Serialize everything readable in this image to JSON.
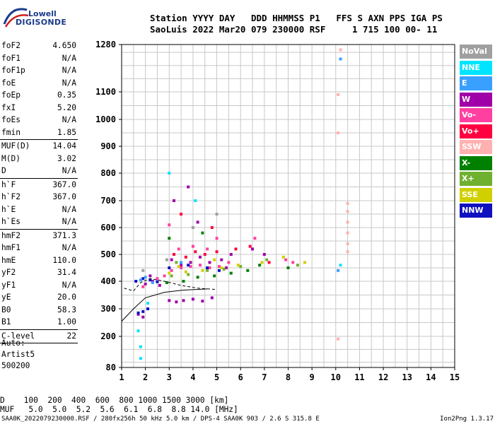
{
  "logo": {
    "line1": "Lowell",
    "line2": "DIGISONDE"
  },
  "header": {
    "labels": "Station YYYY DAY   DDD HHMMSS P1   FFS S AXN PPS IGA PS",
    "values": "SaoLuis 2022 Mar20 079 230000 RSF     1 715 100 00- 11"
  },
  "params": [
    {
      "name": "foF2",
      "value": "4.650"
    },
    {
      "name": "foF1",
      "value": "N/A"
    },
    {
      "name": "foF1p",
      "value": "N/A"
    },
    {
      "name": "foE",
      "value": "N/A"
    },
    {
      "name": "foEp",
      "value": "0.35"
    },
    {
      "name": "fxI",
      "value": "5.20"
    },
    {
      "name": "foEs",
      "value": "N/A"
    },
    {
      "name": "fmin",
      "value": "1.85",
      "sep_after": true
    },
    {
      "name": "MUF(D)",
      "value": "14.04"
    },
    {
      "name": "M(D)",
      "value": "3.02"
    },
    {
      "name": "D",
      "value": "N/A",
      "sep_after": true
    },
    {
      "name": "h`F",
      "value": "367.0"
    },
    {
      "name": "h`F2",
      "value": "367.0"
    },
    {
      "name": "h`E",
      "value": "N/A"
    },
    {
      "name": "h`Es",
      "value": "N/A",
      "sep_after": true
    },
    {
      "name": "hmF2",
      "value": "371.3"
    },
    {
      "name": "hmF1",
      "value": "N/A"
    },
    {
      "name": "hmE",
      "value": "110.0"
    },
    {
      "name": "yF2",
      "value": "31.4"
    },
    {
      "name": "yF1",
      "value": "N/A"
    },
    {
      "name": "yE",
      "value": "20.0"
    },
    {
      "name": "B0",
      "value": "58.3"
    },
    {
      "name": "B1",
      "value": "1.00",
      "sep_after": true
    },
    {
      "name": "C-level",
      "value": "22",
      "sep_after": true
    }
  ],
  "auto": {
    "line1": "Auto:",
    "line2": "Artist5",
    "line3": "500200"
  },
  "legend": [
    {
      "label": "NoVal",
      "color": "#a0a0a0"
    },
    {
      "label": "NNE",
      "color": "#00e5ff"
    },
    {
      "label": "E",
      "color": "#3aa0ff"
    },
    {
      "label": "W",
      "color": "#a000a8"
    },
    {
      "label": "Vo-",
      "color": "#ff40a0"
    },
    {
      "label": "Vo+",
      "color": "#ff0040"
    },
    {
      "label": "SSW",
      "color": "#ffb0b0"
    },
    {
      "label": "X-",
      "color": "#008000"
    },
    {
      "label": "X+",
      "color": "#70b030"
    },
    {
      "label": "SSE",
      "color": "#d0d000"
    },
    {
      "label": "NNW",
      "color": "#1010c0"
    }
  ],
  "footer": {
    "d_row": "D    100  200  400  600  800 1000 1500 3000 [km]",
    "muf_row": "MUF   5.0  5.0  5.2  5.6  6.1  6.8  8.8 14.0 [MHz]",
    "file_line": "SAA0K_2022079230000.RSF / 280fx256h 50 kHz 5.0 km / DPS-4 SAA0K 903 / 2.6 S 315.8 E",
    "version": "Ion2Png 1.3.17"
  },
  "chart_data": {
    "type": "scatter",
    "xlim": [
      1,
      15
    ],
    "ylim": [
      80,
      1280
    ],
    "x_ticks": [
      1,
      2,
      3,
      4,
      5,
      6,
      7,
      8,
      9,
      10,
      11,
      12,
      13,
      14,
      15
    ],
    "y_ticks": [
      80,
      200,
      300,
      400,
      500,
      600,
      700,
      800,
      900,
      1000,
      1100,
      1280
    ],
    "grid": true,
    "legend_position": "right",
    "series": [
      {
        "name": "W",
        "color": "#a000a8",
        "points": [
          [
            2.0,
            390
          ],
          [
            2.3,
            400
          ],
          [
            2.6,
            385
          ],
          [
            3.0,
            330
          ],
          [
            3.3,
            325
          ],
          [
            3.6,
            330
          ],
          [
            4.0,
            335
          ],
          [
            4.4,
            328
          ],
          [
            4.8,
            340
          ],
          [
            3.1,
            480
          ],
          [
            3.5,
            460
          ],
          [
            3.9,
            470
          ],
          [
            4.3,
            490
          ],
          [
            4.7,
            470
          ],
          [
            5.2,
            480
          ],
          [
            5.6,
            500
          ],
          [
            6.5,
            520
          ],
          [
            7.0,
            500
          ],
          [
            1.7,
            280
          ],
          [
            1.9,
            270
          ],
          [
            2.2,
            420
          ],
          [
            3.2,
            700
          ],
          [
            3.8,
            750
          ],
          [
            4.2,
            620
          ],
          [
            5.4,
            450
          ]
        ]
      },
      {
        "name": "Vo-",
        "color": "#ff40a0",
        "points": [
          [
            2.5,
            410
          ],
          [
            2.8,
            420
          ],
          [
            3.1,
            440
          ],
          [
            3.5,
            450
          ],
          [
            3.9,
            455
          ],
          [
            4.3,
            460
          ],
          [
            4.7,
            450
          ],
          [
            5.1,
            455
          ],
          [
            5.5,
            470
          ],
          [
            3.4,
            520
          ],
          [
            4.0,
            530
          ],
          [
            4.6,
            520
          ],
          [
            6.6,
            560
          ],
          [
            7.9,
            480
          ],
          [
            8.2,
            470
          ],
          [
            1.9,
            380
          ],
          [
            3.0,
            610
          ],
          [
            5.0,
            560
          ]
        ]
      },
      {
        "name": "Vo+",
        "color": "#ff0040",
        "points": [
          [
            3.2,
            500
          ],
          [
            3.7,
            490
          ],
          [
            4.1,
            510
          ],
          [
            4.5,
            500
          ],
          [
            5.0,
            510
          ],
          [
            5.8,
            520
          ],
          [
            6.4,
            530
          ],
          [
            7.2,
            470
          ],
          [
            4.8,
            600
          ],
          [
            3.5,
            650
          ]
        ]
      },
      {
        "name": "X-",
        "color": "#008000",
        "points": [
          [
            2.9,
            395
          ],
          [
            3.6,
            400
          ],
          [
            4.2,
            415
          ],
          [
            4.9,
            420
          ],
          [
            5.6,
            430
          ],
          [
            6.3,
            440
          ],
          [
            6.8,
            460
          ],
          [
            8.0,
            450
          ],
          [
            3.0,
            560
          ],
          [
            4.4,
            580
          ]
        ]
      },
      {
        "name": "X+",
        "color": "#70b030",
        "points": [
          [
            3.1,
            420
          ],
          [
            3.8,
            425
          ],
          [
            4.6,
            440
          ],
          [
            5.3,
            445
          ],
          [
            6.0,
            455
          ],
          [
            7.1,
            480
          ],
          [
            8.4,
            460
          ],
          [
            3.3,
            470
          ]
        ]
      },
      {
        "name": "SSE",
        "color": "#d0d000",
        "points": [
          [
            3.0,
            430
          ],
          [
            3.7,
            435
          ],
          [
            4.4,
            440
          ],
          [
            5.2,
            450
          ],
          [
            5.9,
            460
          ],
          [
            6.9,
            470
          ],
          [
            7.8,
            490
          ],
          [
            8.7,
            470
          ],
          [
            4.9,
            480
          ],
          [
            3.4,
            455
          ]
        ]
      },
      {
        "name": "NNW",
        "color": "#1010c0",
        "points": [
          [
            1.6,
            400
          ],
          [
            1.9,
            410
          ],
          [
            2.2,
            405
          ],
          [
            2.5,
            398
          ],
          [
            1.7,
            285
          ],
          [
            1.9,
            290
          ],
          [
            2.1,
            300
          ],
          [
            3.0,
            450
          ],
          [
            3.8,
            460
          ],
          [
            4.6,
            450
          ],
          [
            5.1,
            440
          ]
        ]
      },
      {
        "name": "NNE",
        "color": "#00e5ff",
        "points": [
          [
            1.7,
            220
          ],
          [
            1.8,
            160
          ],
          [
            1.8,
            115
          ],
          [
            2.1,
            320
          ],
          [
            10.2,
            460
          ],
          [
            3.0,
            800
          ],
          [
            4.1,
            700
          ]
        ]
      },
      {
        "name": "E",
        "color": "#3aa0ff",
        "points": [
          [
            1.8,
            405
          ],
          [
            2.0,
            415
          ],
          [
            2.3,
            395
          ],
          [
            10.2,
            1225
          ],
          [
            10.1,
            440
          ],
          [
            3.5,
            470
          ]
        ]
      },
      {
        "name": "SSW",
        "color": "#ffb0b0",
        "points": [
          [
            10.1,
            950
          ],
          [
            10.1,
            190
          ],
          [
            10.5,
            690
          ],
          [
            10.5,
            660
          ],
          [
            10.5,
            620
          ],
          [
            10.5,
            580
          ],
          [
            10.5,
            540
          ],
          [
            10.5,
            510
          ],
          [
            10.2,
            1260
          ],
          [
            10.1,
            1090
          ]
        ]
      },
      {
        "name": "NoVal",
        "color": "#a0a0a0",
        "points": [
          [
            1.9,
            440
          ],
          [
            2.9,
            480
          ],
          [
            4.0,
            600
          ],
          [
            5.0,
            650
          ]
        ]
      }
    ]
  }
}
